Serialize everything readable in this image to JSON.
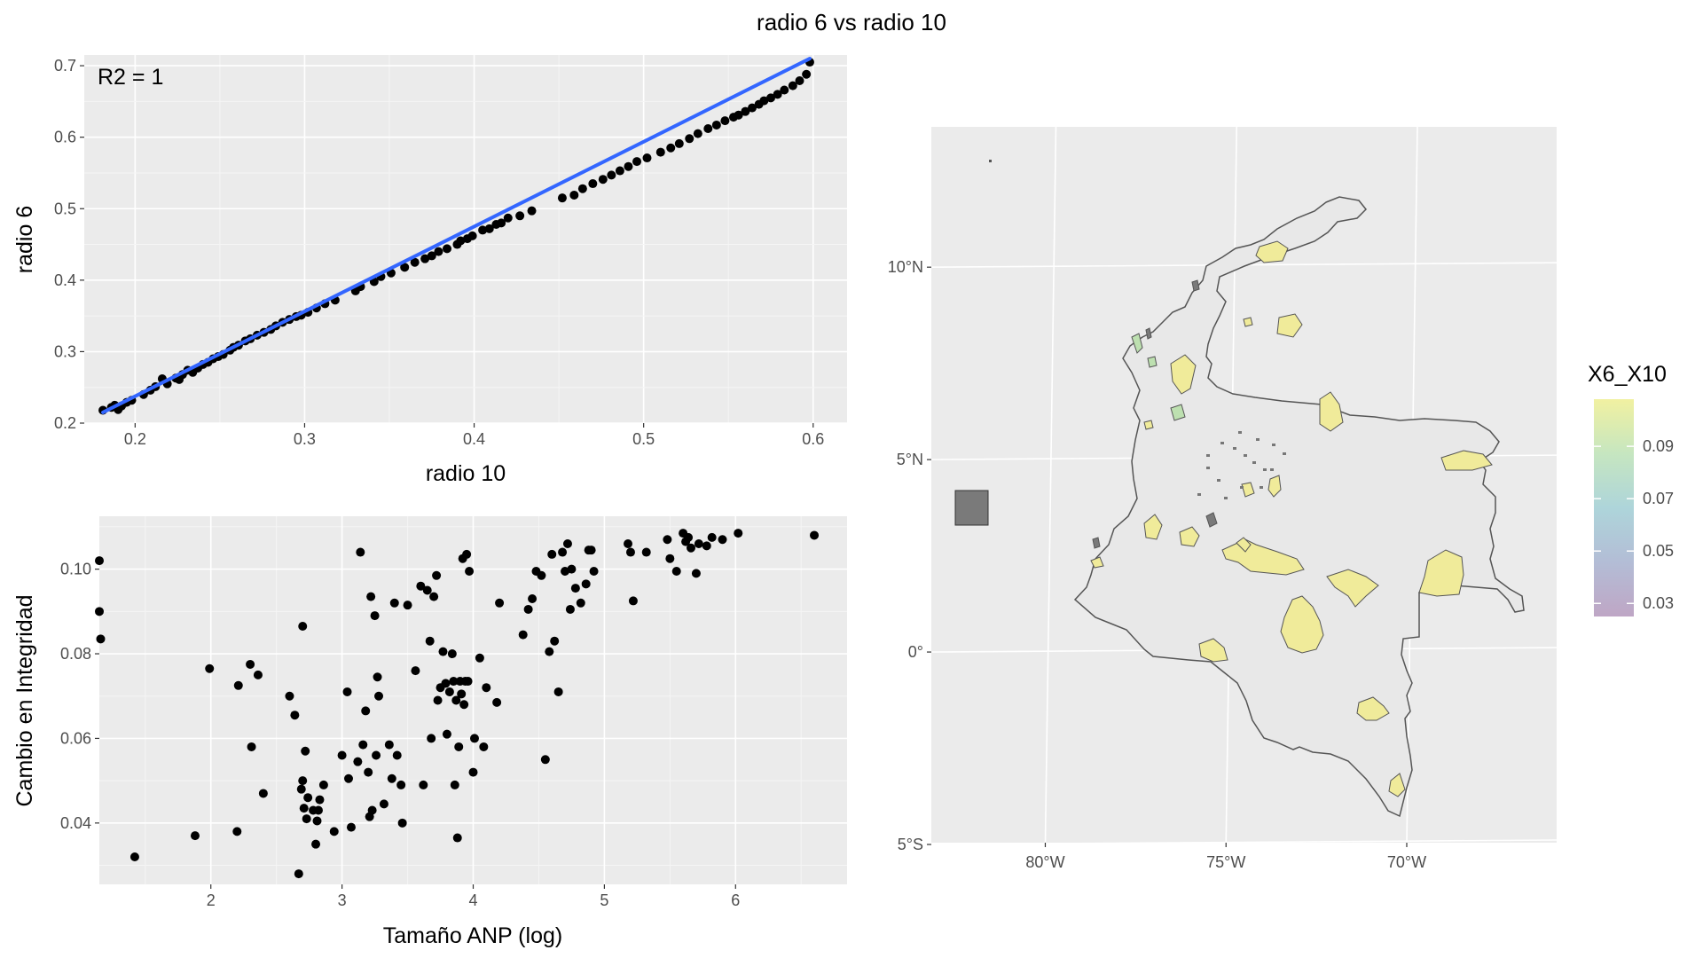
{
  "figure": {
    "title": "radio 6 vs radio 10"
  },
  "chart_data": [
    {
      "type": "scatter",
      "id": "top-left",
      "xlabel": "radio 10",
      "ylabel": "radio 6",
      "xlim": [
        0.17,
        0.62
      ],
      "ylim": [
        0.2,
        0.715
      ],
      "x_ticks": [
        0.2,
        0.3,
        0.4,
        0.5,
        0.6
      ],
      "x_tick_labels": [
        "0.2",
        "0.3",
        "0.4",
        "0.5",
        "0.6"
      ],
      "y_ticks": [
        0.2,
        0.3,
        0.4,
        0.5,
        0.6,
        0.7
      ],
      "y_tick_labels": [
        "0.2",
        "0.3",
        "0.4",
        "0.5",
        "0.6",
        "0.7"
      ],
      "annotation": "R2 = 1",
      "fit_line": {
        "color": "#3366ff",
        "x": [
          0.181,
          0.598
        ],
        "y": [
          0.215,
          0.71
        ]
      },
      "grid": true,
      "x": [
        0.181,
        0.186,
        0.188,
        0.19,
        0.192,
        0.195,
        0.198,
        0.205,
        0.209,
        0.212,
        0.216,
        0.219,
        0.224,
        0.226,
        0.228,
        0.231,
        0.234,
        0.237,
        0.24,
        0.243,
        0.246,
        0.249,
        0.252,
        0.256,
        0.258,
        0.261,
        0.265,
        0.268,
        0.272,
        0.276,
        0.28,
        0.283,
        0.287,
        0.291,
        0.295,
        0.298,
        0.302,
        0.307,
        0.312,
        0.318,
        0.33,
        0.333,
        0.341,
        0.345,
        0.351,
        0.359,
        0.365,
        0.371,
        0.375,
        0.379,
        0.384,
        0.39,
        0.392,
        0.396,
        0.399,
        0.405,
        0.409,
        0.413,
        0.416,
        0.42,
        0.427,
        0.434,
        0.452,
        0.459,
        0.464,
        0.47,
        0.476,
        0.481,
        0.486,
        0.491,
        0.496,
        0.502,
        0.51,
        0.516,
        0.521,
        0.527,
        0.532,
        0.538,
        0.543,
        0.548,
        0.553,
        0.556,
        0.56,
        0.564,
        0.568,
        0.571,
        0.575,
        0.579,
        0.583,
        0.588,
        0.592,
        0.596,
        0.598
      ],
      "y": [
        0.218,
        0.222,
        0.225,
        0.219,
        0.224,
        0.229,
        0.232,
        0.24,
        0.246,
        0.251,
        0.262,
        0.255,
        0.263,
        0.261,
        0.268,
        0.274,
        0.271,
        0.277,
        0.282,
        0.285,
        0.29,
        0.293,
        0.296,
        0.302,
        0.306,
        0.309,
        0.315,
        0.318,
        0.323,
        0.327,
        0.331,
        0.336,
        0.341,
        0.345,
        0.349,
        0.351,
        0.355,
        0.361,
        0.367,
        0.372,
        0.385,
        0.391,
        0.398,
        0.405,
        0.41,
        0.418,
        0.425,
        0.43,
        0.434,
        0.44,
        0.444,
        0.45,
        0.455,
        0.458,
        0.462,
        0.47,
        0.472,
        0.478,
        0.48,
        0.487,
        0.49,
        0.497,
        0.515,
        0.519,
        0.528,
        0.535,
        0.541,
        0.547,
        0.553,
        0.559,
        0.566,
        0.571,
        0.579,
        0.585,
        0.591,
        0.598,
        0.605,
        0.612,
        0.617,
        0.623,
        0.628,
        0.631,
        0.636,
        0.641,
        0.646,
        0.651,
        0.655,
        0.66,
        0.666,
        0.672,
        0.679,
        0.688,
        0.705
      ]
    },
    {
      "type": "scatter",
      "id": "bottom-left",
      "xlabel": "Tamaño ANP (log)",
      "ylabel": "Cambio en Integridad",
      "xlim": [
        1.15,
        6.85
      ],
      "ylim": [
        0.0255,
        0.1125
      ],
      "x_ticks": [
        2,
        3,
        4,
        5,
        6
      ],
      "x_tick_labels": [
        "2",
        "3",
        "4",
        "5",
        "6"
      ],
      "y_ticks": [
        0.04,
        0.06,
        0.08,
        0.1
      ],
      "y_tick_labels": [
        "0.04",
        "0.06",
        "0.08",
        "0.10"
      ],
      "grid": true,
      "x": [
        1.15,
        1.15,
        1.16,
        1.42,
        1.88,
        1.99,
        2.2,
        2.21,
        2.3,
        2.31,
        2.36,
        2.4,
        2.6,
        2.64,
        2.67,
        2.69,
        2.7,
        2.7,
        2.71,
        2.72,
        2.73,
        2.74,
        2.78,
        2.8,
        2.81,
        2.82,
        2.83,
        2.86,
        2.94,
        3.0,
        3.04,
        3.05,
        3.07,
        3.12,
        3.14,
        3.16,
        3.18,
        3.2,
        3.21,
        3.22,
        3.23,
        3.25,
        3.26,
        3.27,
        3.28,
        3.32,
        3.36,
        3.38,
        3.4,
        3.42,
        3.45,
        3.46,
        3.5,
        3.56,
        3.6,
        3.62,
        3.65,
        3.67,
        3.68,
        3.7,
        3.72,
        3.73,
        3.75,
        3.77,
        3.79,
        3.8,
        3.82,
        3.84,
        3.85,
        3.86,
        3.87,
        3.88,
        3.89,
        3.9,
        3.91,
        3.92,
        3.93,
        3.94,
        3.95,
        3.96,
        3.97,
        4.0,
        4.01,
        4.05,
        4.08,
        4.1,
        4.18,
        4.2,
        4.38,
        4.42,
        4.45,
        4.48,
        4.52,
        4.55,
        4.58,
        4.6,
        4.62,
        4.65,
        4.68,
        4.7,
        4.72,
        4.74,
        4.75,
        4.78,
        4.82,
        4.86,
        4.88,
        4.9,
        4.92,
        5.18,
        5.2,
        5.22,
        5.32,
        5.48,
        5.5,
        5.55,
        5.6,
        5.62,
        5.64,
        5.66,
        5.7,
        5.72,
        5.78,
        5.82,
        5.9,
        6.02,
        6.6
      ],
      "y": [
        0.102,
        0.09,
        0.0835,
        0.032,
        0.037,
        0.0765,
        0.038,
        0.0725,
        0.0775,
        0.058,
        0.075,
        0.047,
        0.07,
        0.0655,
        0.028,
        0.048,
        0.05,
        0.0865,
        0.0435,
        0.057,
        0.041,
        0.046,
        0.043,
        0.035,
        0.0405,
        0.043,
        0.0455,
        0.049,
        0.038,
        0.056,
        0.071,
        0.0505,
        0.039,
        0.0545,
        0.104,
        0.0585,
        0.0665,
        0.052,
        0.0415,
        0.0935,
        0.043,
        0.089,
        0.056,
        0.0745,
        0.07,
        0.0445,
        0.0585,
        0.0505,
        0.092,
        0.056,
        0.049,
        0.04,
        0.0915,
        0.076,
        0.096,
        0.049,
        0.095,
        0.083,
        0.06,
        0.0935,
        0.0985,
        0.069,
        0.072,
        0.0805,
        0.073,
        0.061,
        0.071,
        0.08,
        0.0735,
        0.049,
        0.069,
        0.0365,
        0.058,
        0.0735,
        0.0705,
        0.1025,
        0.068,
        0.0735,
        0.1035,
        0.0735,
        0.0995,
        0.052,
        0.06,
        0.079,
        0.058,
        0.072,
        0.0685,
        0.092,
        0.0845,
        0.0905,
        0.093,
        0.0995,
        0.0985,
        0.055,
        0.0805,
        0.1035,
        0.083,
        0.071,
        0.104,
        0.0995,
        0.106,
        0.0905,
        0.1,
        0.0955,
        0.092,
        0.0965,
        0.1045,
        0.1045,
        0.0995,
        0.106,
        0.104,
        0.0925,
        0.104,
        0.107,
        0.1025,
        0.0995,
        0.1085,
        0.1065,
        0.1075,
        0.105,
        0.099,
        0.106,
        0.1055,
        0.1075,
        0.107,
        0.1085,
        0.108
      ]
    },
    {
      "type": "map",
      "id": "right-map",
      "xlim": [
        -83.3,
        -66.0
      ],
      "ylim": [
        -5.0,
        13.6
      ],
      "x_ticks": [
        -80,
        -75,
        -70
      ],
      "x_tick_labels": [
        "80°W",
        "75°W",
        "70°W"
      ],
      "y_ticks": [
        10,
        5,
        0,
        -5
      ],
      "y_tick_labels": [
        "10°N",
        "5°N",
        "0°",
        "5°S"
      ],
      "legend": {
        "title": "X6_X10",
        "position": "right",
        "ticks": [
          0.09,
          0.07,
          0.05,
          0.03
        ],
        "tick_labels": [
          "0.09",
          "0.07",
          "0.05",
          "0.03"
        ],
        "range": [
          0.025,
          0.108
        ],
        "colors": [
          "#bfa6c5",
          "#b3bdd6",
          "#aed5da",
          "#c6e6c0",
          "#f1f1a1"
        ]
      },
      "colors": {
        "country_fill": "#e8e8e8",
        "country_border": "#555555",
        "area_high": "#f0eb9a",
        "area_mid": "#bde0b0",
        "area_low": "#7a7a7a"
      }
    }
  ]
}
